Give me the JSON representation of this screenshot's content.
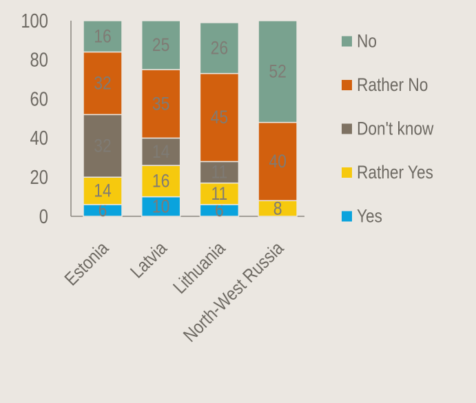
{
  "chart_data": {
    "type": "bar",
    "stacked": true,
    "categories": [
      "Estonia",
      "Latvia",
      "Lithuania",
      "North-West Russia"
    ],
    "series": [
      {
        "name": "Yes",
        "color": "#0aa3dd",
        "values": [
          6,
          10,
          6,
          null
        ]
      },
      {
        "name": "Rather Yes",
        "color": "#f6c90e",
        "values": [
          14,
          16,
          11,
          8
        ]
      },
      {
        "name": "Don't know",
        "color": "#7e7262",
        "values": [
          32,
          14,
          11,
          null
        ]
      },
      {
        "name": "Rather No",
        "color": "#d2600e",
        "values": [
          32,
          35,
          45,
          40
        ]
      },
      {
        "name": "No",
        "color": "#79a28f",
        "values": [
          16,
          25,
          26,
          52
        ]
      }
    ],
    "ylim": [
      0,
      100
    ],
    "yticks": [
      0,
      20,
      40,
      60,
      80,
      100
    ],
    "legend_position": "right",
    "legend_order": [
      "No",
      "Rather No",
      "Don't know",
      "Rather Yes",
      "Yes"
    ],
    "grid": false
  }
}
